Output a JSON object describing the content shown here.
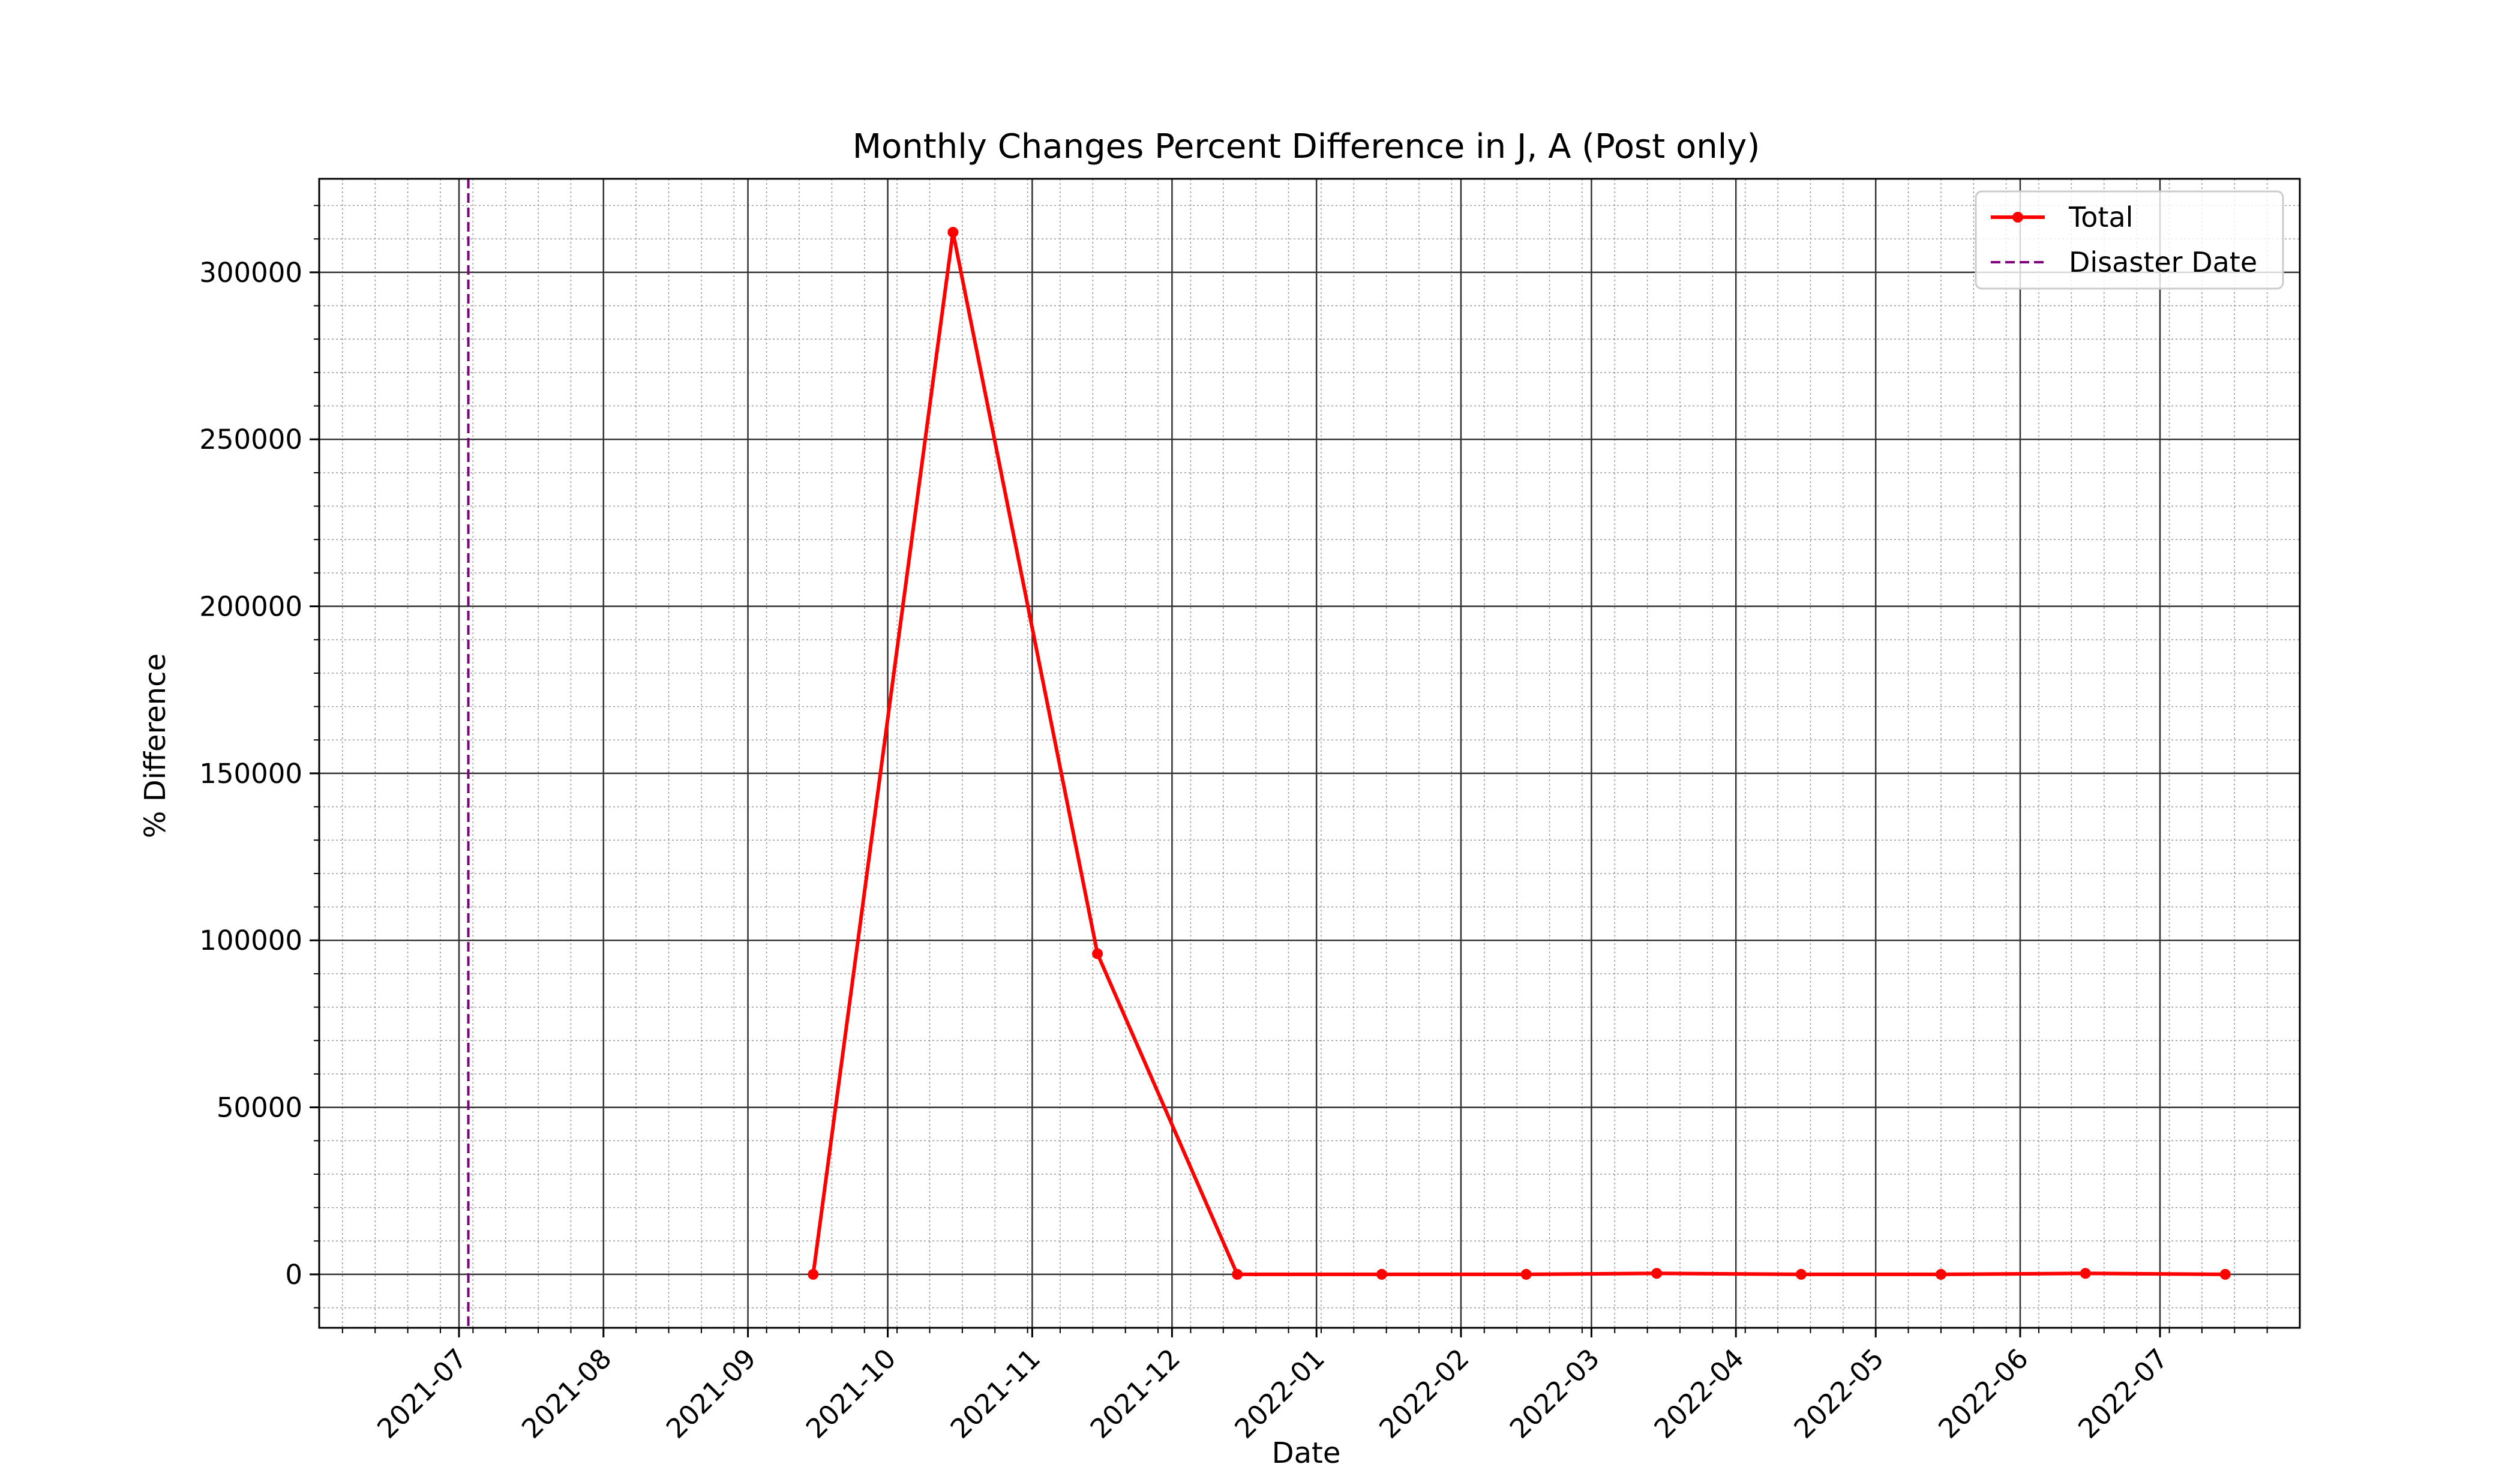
{
  "chart_data": {
    "type": "line",
    "title": "Monthly Changes Percent Difference in J, A (Post only)",
    "xlabel": "Date",
    "ylabel": "% Difference",
    "x_range": [
      "2021-06-01",
      "2022-07-31"
    ],
    "ylim": [
      -16000,
      328000
    ],
    "grid": true,
    "legend_position": "upper right",
    "x_ticks": [
      "2021-07",
      "2021-08",
      "2021-09",
      "2021-10",
      "2021-11",
      "2021-12",
      "2022-01",
      "2022-02",
      "2022-03",
      "2022-04",
      "2022-05",
      "2022-06",
      "2022-07"
    ],
    "y_ticks": [
      "0",
      "50000",
      "100000",
      "150000",
      "200000",
      "250000",
      "300000"
    ],
    "y_tick_values": [
      0,
      50000,
      100000,
      150000,
      200000,
      250000,
      300000
    ],
    "series": [
      {
        "name": "Total",
        "color": "#ff0000",
        "marker": "circle",
        "x": [
          "2021-09-15",
          "2021-10-15",
          "2021-11-15",
          "2021-12-15",
          "2022-01-15",
          "2022-02-15",
          "2022-03-15",
          "2022-04-15",
          "2022-05-15",
          "2022-06-15",
          "2022-07-15"
        ],
        "values": [
          0,
          312000,
          96000,
          0,
          0,
          0,
          300,
          0,
          0,
          300,
          0
        ]
      }
    ],
    "vlines": [
      {
        "name": "Disaster Date",
        "x": "2021-07-03",
        "color": "#800080",
        "style": "dashed"
      }
    ]
  }
}
